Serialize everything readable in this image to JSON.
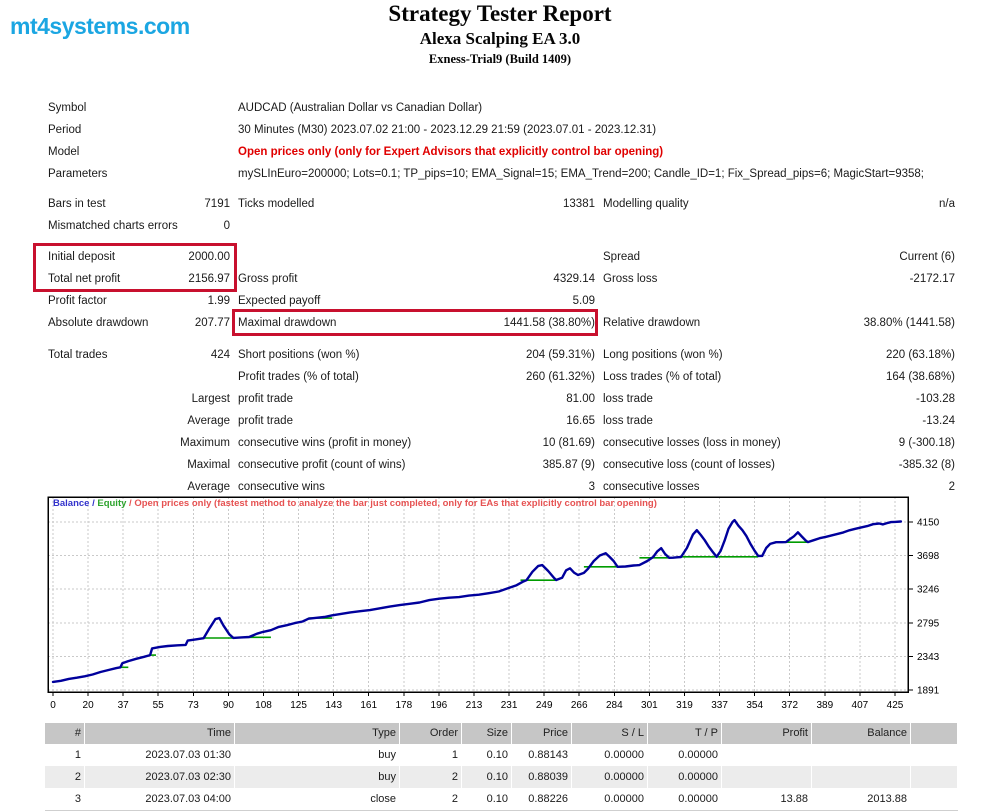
{
  "header": {
    "logo": "mt4systems.com",
    "title": "Strategy Tester Report",
    "subtitle": "Alexa Scalping EA 3.0",
    "build": "Exness-Trial9 (Build 1409)"
  },
  "colors": {
    "logo_cyan": "#1ba6e2",
    "highlight_red": "#c8102e",
    "model_text_red": "#e00000",
    "balance_blue": "#00009c",
    "equity_green": "#009c00",
    "legend_red": "#e65252"
  },
  "summary": {
    "rows": [
      {
        "l1": "Symbol",
        "wide": "AUDCAD (Australian Dollar vs Canadian Dollar)"
      },
      {
        "l1": "Period",
        "wide": "30 Minutes (M30) 2023.07.02 21:00 - 2023.12.29 21:59 (2023.07.01 - 2023.12.31)"
      },
      {
        "l1": "Model",
        "wide": "Open prices only (only for Expert Advisors that explicitly control bar opening)",
        "wide_red": true
      },
      {
        "l1": "Parameters",
        "wide": "mySLInEuro=200000; Lots=0.1; TP_pips=10; EMA_Signal=15; EMA_Trend=200; Candle_ID=1; Fix_Spread_pips=6; MagicStart=9358;"
      },
      {
        "g": 8,
        "l1": "Bars in test",
        "v1": "7191",
        "l2": "Ticks modelled",
        "v2": "13381",
        "l3": "Modelling quality",
        "v3": "n/a"
      },
      {
        "l1": "Mismatched charts errors",
        "v1": "0"
      },
      {
        "g": 9,
        "l1": "Initial deposit",
        "v1": "2000.00",
        "l3": "Spread",
        "v3": "Current (6)"
      },
      {
        "l1": "Total net profit",
        "v1": "2156.97",
        "l2": "Gross profit",
        "v2": "4329.14",
        "l3": "Gross loss",
        "v3": "-2172.17"
      },
      {
        "l1": "Profit factor",
        "v1": "1.99",
        "l2": "Expected payoff",
        "v2": "5.09"
      },
      {
        "l1": "Absolute drawdown",
        "v1": "207.77",
        "l2": "Maximal drawdown",
        "v2": "1441.58 (38.80%)",
        "l3": "Relative drawdown",
        "v3": "38.80% (1441.58)"
      },
      {
        "g": 10,
        "l1": "Total trades",
        "v1": "424",
        "l2": "Short positions (won %)",
        "v2": "204 (59.31%)",
        "l3": "Long positions (won %)",
        "v3": "220 (63.18%)"
      },
      {
        "l2": "Profit trades (% of total)",
        "v2": "260 (61.32%)",
        "l3": "Loss trades (% of total)",
        "v3": "164 (38.68%)"
      },
      {
        "r1": "Largest",
        "l2": "profit trade",
        "v2": "81.00",
        "l3": "loss trade",
        "v3": "-103.28"
      },
      {
        "r1": "Average",
        "l2": "profit trade",
        "v2": "16.65",
        "l3": "loss trade",
        "v3": "-13.24"
      },
      {
        "r1": "Maximum",
        "l2": "consecutive wins (profit in money)",
        "v2": "10 (81.69)",
        "l3": "consecutive losses (loss in money)",
        "v3": "9 (-300.18)"
      },
      {
        "r1": "Maximal",
        "l2": "consecutive profit (count of wins)",
        "v2": "385.87 (9)",
        "l3": "consecutive loss (count of losses)",
        "v3": "-385.32 (8)"
      },
      {
        "r1": "Average",
        "l2": "consecutive wins",
        "v2": "3",
        "l3": "consecutive losses",
        "v3": "2"
      }
    ]
  },
  "chart_data": {
    "type": "line",
    "title": "",
    "legend": [
      {
        "text": "Balance",
        "color": "#3333cc"
      },
      {
        "text": " / ",
        "color": "#3333cc"
      },
      {
        "text": "Equity",
        "color": "#2da32d"
      },
      {
        "text": " / ",
        "color": "#e65252"
      },
      {
        "text": "Open prices only (fastest method to analyze the bar just completed, only for EAs that explicitly control bar opening)",
        "color": "#e65252"
      }
    ],
    "x_ticks": [
      0,
      20,
      37,
      55,
      73,
      90,
      108,
      125,
      143,
      161,
      178,
      196,
      213,
      231,
      249,
      266,
      284,
      301,
      319,
      337,
      354,
      372,
      389,
      407,
      425
    ],
    "y_ticks": [
      1891,
      2343,
      2795,
      3246,
      3698,
      4150
    ],
    "ylim": [
      1864,
      4486
    ],
    "xlim": [
      0,
      432
    ],
    "grid": true,
    "series": [
      {
        "name": "Balance",
        "color": "#00009c",
        "points": [
          [
            0,
            2000
          ],
          [
            4,
            2015
          ],
          [
            8,
            2040
          ],
          [
            12,
            2056
          ],
          [
            16,
            2075
          ],
          [
            20,
            2100
          ],
          [
            24,
            2133
          ],
          [
            28,
            2160
          ],
          [
            32,
            2185
          ],
          [
            34,
            2196
          ],
          [
            35,
            2250
          ],
          [
            38,
            2280
          ],
          [
            42,
            2310
          ],
          [
            46,
            2338
          ],
          [
            49,
            2360
          ],
          [
            50,
            2450
          ],
          [
            54,
            2470
          ],
          [
            58,
            2482
          ],
          [
            63,
            2492
          ],
          [
            67,
            2498
          ],
          [
            68,
            2555
          ],
          [
            72,
            2572
          ],
          [
            76,
            2588
          ],
          [
            79,
            2720
          ],
          [
            82,
            2845
          ],
          [
            84,
            2858
          ],
          [
            86,
            2760
          ],
          [
            89,
            2640
          ],
          [
            91,
            2592
          ],
          [
            95,
            2598
          ],
          [
            99,
            2604
          ],
          [
            103,
            2648
          ],
          [
            106,
            2672
          ],
          [
            110,
            2695
          ],
          [
            114,
            2740
          ],
          [
            118,
            2762
          ],
          [
            122,
            2790
          ],
          [
            126,
            2812
          ],
          [
            129,
            2850
          ],
          [
            133,
            2862
          ],
          [
            137,
            2872
          ],
          [
            141,
            2895
          ],
          [
            145,
            2912
          ],
          [
            150,
            2935
          ],
          [
            155,
            2950
          ],
          [
            160,
            2966
          ],
          [
            165,
            2990
          ],
          [
            170,
            3012
          ],
          [
            175,
            3032
          ],
          [
            180,
            3050
          ],
          [
            185,
            3068
          ],
          [
            190,
            3100
          ],
          [
            195,
            3118
          ],
          [
            200,
            3132
          ],
          [
            205,
            3140
          ],
          [
            210,
            3160
          ],
          [
            215,
            3172
          ],
          [
            220,
            3192
          ],
          [
            225,
            3215
          ],
          [
            230,
            3262
          ],
          [
            234,
            3300
          ],
          [
            237,
            3345
          ],
          [
            239,
            3368
          ],
          [
            242,
            3480
          ],
          [
            245,
            3560
          ],
          [
            247,
            3570
          ],
          [
            250,
            3490
          ],
          [
            253,
            3395
          ],
          [
            254,
            3370
          ],
          [
            257,
            3400
          ],
          [
            259,
            3500
          ],
          [
            261,
            3528
          ],
          [
            263,
            3470
          ],
          [
            265,
            3438
          ],
          [
            268,
            3465
          ],
          [
            270,
            3520
          ],
          [
            273,
            3625
          ],
          [
            276,
            3700
          ],
          [
            279,
            3730
          ],
          [
            281,
            3680
          ],
          [
            283,
            3625
          ],
          [
            285,
            3548
          ],
          [
            289,
            3552
          ],
          [
            293,
            3565
          ],
          [
            296,
            3570
          ],
          [
            300,
            3625
          ],
          [
            303,
            3680
          ],
          [
            305,
            3755
          ],
          [
            307,
            3798
          ],
          [
            309,
            3720
          ],
          [
            311,
            3668
          ],
          [
            313,
            3670
          ],
          [
            315,
            3675
          ],
          [
            317,
            3680
          ],
          [
            320,
            3800
          ],
          [
            323,
            3980
          ],
          [
            325,
            4040
          ],
          [
            327,
            3975
          ],
          [
            329,
            3905
          ],
          [
            331,
            3820
          ],
          [
            333,
            3748
          ],
          [
            335,
            3682
          ],
          [
            337,
            3760
          ],
          [
            339,
            3900
          ],
          [
            341,
            4060
          ],
          [
            343,
            4150
          ],
          [
            344,
            4175
          ],
          [
            346,
            4100
          ],
          [
            348,
            4040
          ],
          [
            350,
            3960
          ],
          [
            352,
            3860
          ],
          [
            354,
            3770
          ],
          [
            356,
            3694
          ],
          [
            358,
            3694
          ],
          [
            360,
            3800
          ],
          [
            362,
            3855
          ],
          [
            365,
            3878
          ],
          [
            368,
            3878
          ],
          [
            370,
            3880
          ],
          [
            372,
            3920
          ],
          [
            374,
            3958
          ],
          [
            376,
            4012
          ],
          [
            378,
            3955
          ],
          [
            380,
            3900
          ],
          [
            381,
            3880
          ],
          [
            384,
            3905
          ],
          [
            387,
            3932
          ],
          [
            390,
            3950
          ],
          [
            393,
            3970
          ],
          [
            396,
            3990
          ],
          [
            399,
            4010
          ],
          [
            402,
            4038
          ],
          [
            405,
            4058
          ],
          [
            408,
            4078
          ],
          [
            411,
            4095
          ],
          [
            414,
            4120
          ],
          [
            417,
            4130
          ],
          [
            419,
            4118
          ],
          [
            421,
            4135
          ],
          [
            423,
            4148
          ],
          [
            425,
            4152
          ],
          [
            428,
            4157
          ]
        ]
      },
      {
        "name": "Equity",
        "color": "#009c00",
        "segments": [
          [
            34,
            38,
            2196
          ],
          [
            49,
            52,
            2360
          ],
          [
            76,
            91,
            2590
          ],
          [
            95,
            110,
            2600
          ],
          [
            129,
            141,
            2858
          ],
          [
            236,
            254,
            3368
          ],
          [
            268,
            285,
            3548
          ],
          [
            296,
            311,
            3668
          ],
          [
            317,
            356,
            3682
          ],
          [
            370,
            381,
            3878
          ]
        ]
      }
    ]
  },
  "trades": {
    "headers": [
      "#",
      "Time",
      "Type",
      "Order",
      "Size",
      "Price",
      "S / L",
      "T / P",
      "Profit",
      "Balance"
    ],
    "rows": [
      [
        "1",
        "2023.07.03 01:30",
        "buy",
        "1",
        "0.10",
        "0.88143",
        "0.00000",
        "0.00000",
        "",
        ""
      ],
      [
        "2",
        "2023.07.03 02:30",
        "buy",
        "2",
        "0.10",
        "0.88039",
        "0.00000",
        "0.00000",
        "",
        ""
      ],
      [
        "3",
        "2023.07.03 04:00",
        "close",
        "2",
        "0.10",
        "0.88226",
        "0.00000",
        "0.00000",
        "13.88",
        "2013.88"
      ]
    ]
  }
}
